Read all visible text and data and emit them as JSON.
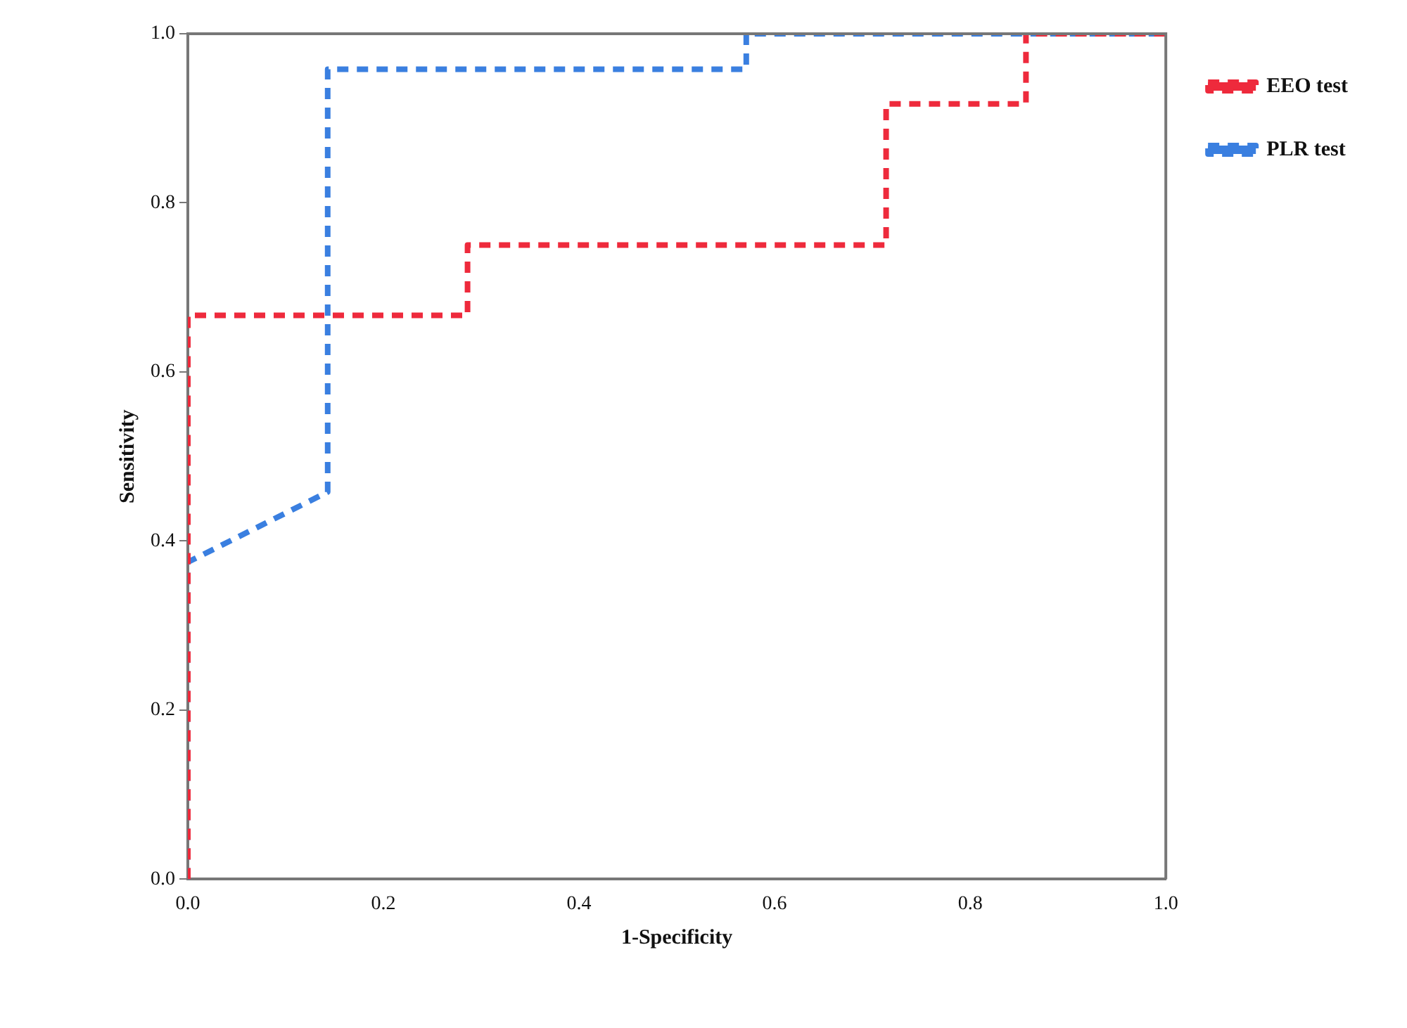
{
  "chart_data": {
    "type": "line",
    "xlabel": "1-Specificity",
    "ylabel": "Sensitivity",
    "xlim": [
      0,
      1
    ],
    "ylim": [
      0,
      1
    ],
    "xticks": [
      {
        "value": 0,
        "label": "0.0"
      },
      {
        "value": 0.2,
        "label": "0.2"
      },
      {
        "value": 0.4,
        "label": "0.4"
      },
      {
        "value": 0.6,
        "label": "0.6"
      },
      {
        "value": 0.8,
        "label": "0.8"
      },
      {
        "value": 1,
        "label": "1.0"
      }
    ],
    "yticks": [
      {
        "value": 0,
        "label": "0.0"
      },
      {
        "value": 0.2,
        "label": "0.2"
      },
      {
        "value": 0.4,
        "label": "0.4"
      },
      {
        "value": 0.6,
        "label": "0.6"
      },
      {
        "value": 0.8,
        "label": "0.8"
      },
      {
        "value": 1,
        "label": "1.0"
      }
    ],
    "grid": false,
    "legend": "top right",
    "marker": "none",
    "line_style": "dashed",
    "series": [
      {
        "name": "EEO test",
        "color": "#ee2a3c",
        "x": [
          0,
          0,
          0.286,
          0.286,
          0.714,
          0.714,
          0.857,
          0.857,
          1
        ],
        "values": [
          0,
          0.667,
          0.667,
          0.75,
          0.75,
          0.917,
          0.917,
          1,
          1
        ]
      },
      {
        "name": "PLR test",
        "color": "#3a7fe0",
        "x": [
          0,
          0,
          0.143,
          0.143,
          0.571,
          0.571,
          1
        ],
        "values": [
          0,
          0.375,
          0.458,
          0.958,
          0.958,
          1,
          1
        ]
      }
    ]
  }
}
